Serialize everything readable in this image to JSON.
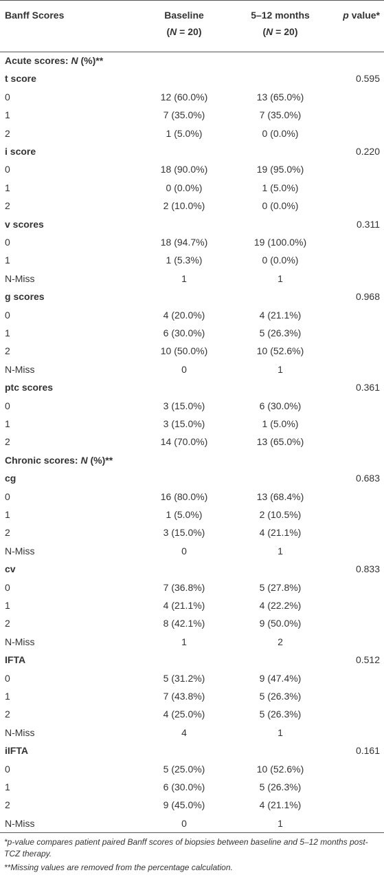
{
  "header": {
    "label": "Banff Scores",
    "baseline": {
      "title": "Baseline",
      "n": [
        {
          "text": "("
        },
        {
          "text": "N",
          "italic": true
        },
        {
          "text": " = 20)"
        }
      ]
    },
    "followup": {
      "title": "5–12 months",
      "n": [
        {
          "text": "("
        },
        {
          "text": "N",
          "italic": true
        },
        {
          "text": " = 20)"
        }
      ]
    },
    "p_value": [
      {
        "text": "p",
        "italic": true
      },
      {
        "text": " value*"
      }
    ]
  },
  "rows": [
    {
      "kind": "section",
      "label": [
        {
          "text": "Acute scores: "
        },
        {
          "text": "N",
          "italic": true
        },
        {
          "text": " (%)**"
        }
      ]
    },
    {
      "kind": "group",
      "label": "t score",
      "p": "0.595"
    },
    {
      "kind": "data",
      "label": "0",
      "baseline": "12 (60.0%)",
      "followup": "13 (65.0%)"
    },
    {
      "kind": "data",
      "label": "1",
      "baseline": "7 (35.0%)",
      "followup": "7 (35.0%)"
    },
    {
      "kind": "data",
      "label": "2",
      "baseline": "1 (5.0%)",
      "followup": "0 (0.0%)"
    },
    {
      "kind": "group",
      "label": "i score",
      "p": "0.220"
    },
    {
      "kind": "data",
      "label": "0",
      "baseline": "18 (90.0%)",
      "followup": "19 (95.0%)"
    },
    {
      "kind": "data",
      "label": "1",
      "baseline": "0 (0.0%)",
      "followup": "1 (5.0%)"
    },
    {
      "kind": "data",
      "label": "2",
      "baseline": "2 (10.0%)",
      "followup": "0 (0.0%)"
    },
    {
      "kind": "group",
      "label": "v scores",
      "p": "0.311"
    },
    {
      "kind": "data",
      "label": "0",
      "baseline": "18 (94.7%)",
      "followup": "19 (100.0%)"
    },
    {
      "kind": "data",
      "label": "1",
      "baseline": "1 (5.3%)",
      "followup": "0 (0.0%)"
    },
    {
      "kind": "data",
      "label": "N-Miss",
      "baseline": "1",
      "followup": "1"
    },
    {
      "kind": "group",
      "label": "g scores",
      "p": "0.968"
    },
    {
      "kind": "data",
      "label": "0",
      "baseline": "4 (20.0%)",
      "followup": "4 (21.1%)"
    },
    {
      "kind": "data",
      "label": "1",
      "baseline": "6 (30.0%)",
      "followup": "5 (26.3%)"
    },
    {
      "kind": "data",
      "label": "2",
      "baseline": "10 (50.0%)",
      "followup": "10 (52.6%)"
    },
    {
      "kind": "data",
      "label": "N-Miss",
      "baseline": "0",
      "followup": "1"
    },
    {
      "kind": "group",
      "label": "ptc scores",
      "p": "0.361"
    },
    {
      "kind": "data",
      "label": "0",
      "baseline": "3 (15.0%)",
      "followup": "6 (30.0%)"
    },
    {
      "kind": "data",
      "label": "1",
      "baseline": "3 (15.0%)",
      "followup": "1 (5.0%)"
    },
    {
      "kind": "data",
      "label": "2",
      "baseline": "14 (70.0%)",
      "followup": "13 (65.0%)"
    },
    {
      "kind": "section",
      "label": [
        {
          "text": "Chronic scores: "
        },
        {
          "text": "N",
          "italic": true
        },
        {
          "text": " (%)**"
        }
      ]
    },
    {
      "kind": "group",
      "label": "cg",
      "p": "0.683"
    },
    {
      "kind": "data",
      "label": "0",
      "baseline": "16 (80.0%)",
      "followup": "13 (68.4%)"
    },
    {
      "kind": "data",
      "label": "1",
      "baseline": "1 (5.0%)",
      "followup": "2 (10.5%)"
    },
    {
      "kind": "data",
      "label": "2",
      "baseline": "3 (15.0%)",
      "followup": "4 (21.1%)"
    },
    {
      "kind": "data",
      "label": "N-Miss",
      "baseline": "0",
      "followup": "1"
    },
    {
      "kind": "group",
      "label": "cv",
      "p": "0.833"
    },
    {
      "kind": "data",
      "label": "0",
      "baseline": "7 (36.8%)",
      "followup": "5 (27.8%)"
    },
    {
      "kind": "data",
      "label": "1",
      "baseline": "4 (21.1%)",
      "followup": "4 (22.2%)"
    },
    {
      "kind": "data",
      "label": "2",
      "baseline": "8 (42.1%)",
      "followup": "9 (50.0%)"
    },
    {
      "kind": "data",
      "label": "N-Miss",
      "baseline": "1",
      "followup": "2"
    },
    {
      "kind": "group",
      "label": "IFTA",
      "p": "0.512"
    },
    {
      "kind": "data",
      "label": "0",
      "baseline": "5 (31.2%)",
      "followup": "9 (47.4%)"
    },
    {
      "kind": "data",
      "label": "1",
      "baseline": "7 (43.8%)",
      "followup": "5 (26.3%)"
    },
    {
      "kind": "data",
      "label": "2",
      "baseline": "4 (25.0%)",
      "followup": "5 (26.3%)"
    },
    {
      "kind": "data",
      "label": "N-Miss",
      "baseline": "4",
      "followup": "1"
    },
    {
      "kind": "group",
      "label": "iIFTA",
      "p": "0.161"
    },
    {
      "kind": "data",
      "label": "0",
      "baseline": "5 (25.0%)",
      "followup": "10 (52.6%)"
    },
    {
      "kind": "data",
      "label": "1",
      "baseline": "6 (30.0%)",
      "followup": "5 (26.3%)"
    },
    {
      "kind": "data",
      "label": "2",
      "baseline": "9 (45.0%)",
      "followup": "4 (21.1%)"
    },
    {
      "kind": "data",
      "label": "N-Miss",
      "baseline": "0",
      "followup": "1"
    }
  ],
  "footnotes": [
    "*p-value compares patient paired Banff scores of biopsies between baseline and 5–12 months post-TCZ therapy.",
    "**Missing values are removed from the percentage calculation."
  ]
}
